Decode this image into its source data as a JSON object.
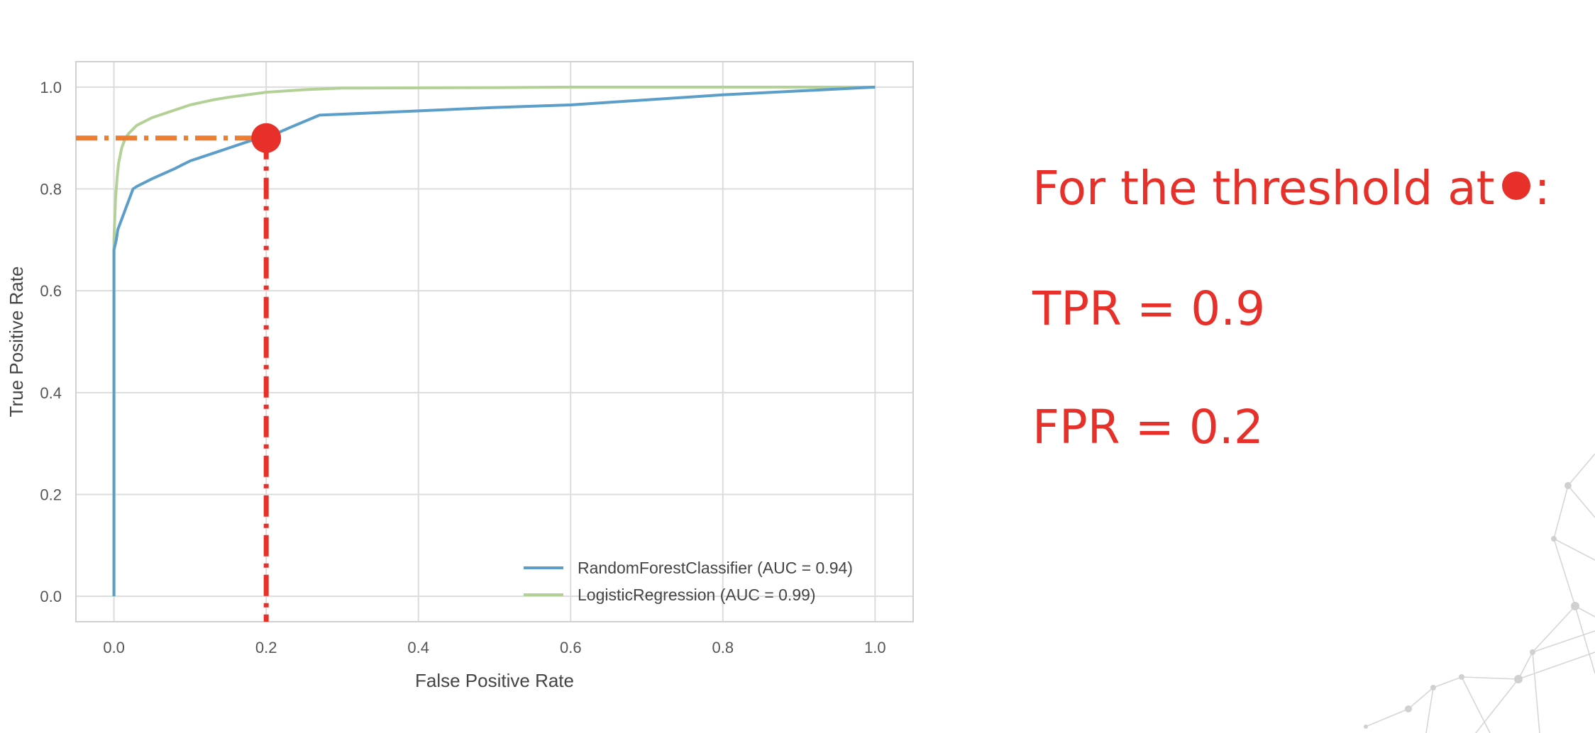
{
  "chart_data": {
    "type": "line",
    "title": "",
    "xlabel": "False Positive Rate",
    "ylabel": "True Positive Rate",
    "xlim": [
      -0.05,
      1.05
    ],
    "ylim": [
      -0.05,
      1.05
    ],
    "xticks": [
      0.0,
      0.2,
      0.4,
      0.6,
      0.8,
      1.0
    ],
    "yticks": [
      0.0,
      0.2,
      0.4,
      0.6,
      0.8,
      1.0
    ],
    "xtick_labels": [
      "0.0",
      "0.2",
      "0.4",
      "0.6",
      "0.8",
      "1.0"
    ],
    "ytick_labels": [
      "0.0",
      "0.2",
      "0.4",
      "0.6",
      "0.8",
      "1.0"
    ],
    "grid": true,
    "legend_position": "lower-right",
    "series": [
      {
        "name": "RandomForestClassifier (AUC = 0.94)",
        "color": "#5b9ec9",
        "x": [
          0.0,
          0.0,
          0.003,
          0.005,
          0.01,
          0.015,
          0.02,
          0.025,
          0.03,
          0.05,
          0.08,
          0.1,
          0.13,
          0.15,
          0.18,
          0.2,
          0.23,
          0.27,
          0.35,
          0.5,
          0.6,
          0.8,
          1.0
        ],
        "y": [
          0.0,
          0.68,
          0.7,
          0.72,
          0.74,
          0.76,
          0.78,
          0.8,
          0.805,
          0.82,
          0.84,
          0.855,
          0.87,
          0.88,
          0.895,
          0.9,
          0.92,
          0.945,
          0.95,
          0.96,
          0.965,
          0.985,
          1.0
        ]
      },
      {
        "name": "LogisticRegression (AUC = 0.99)",
        "color": "#b3d197",
        "x": [
          0.0,
          0.0,
          0.002,
          0.004,
          0.006,
          0.01,
          0.015,
          0.02,
          0.03,
          0.05,
          0.08,
          0.1,
          0.13,
          0.15,
          0.2,
          0.25,
          0.3,
          0.5,
          0.6,
          1.0
        ],
        "y": [
          0.0,
          0.7,
          0.78,
          0.82,
          0.85,
          0.88,
          0.9,
          0.91,
          0.925,
          0.94,
          0.955,
          0.965,
          0.975,
          0.98,
          0.99,
          0.995,
          0.998,
          0.999,
          1.0,
          1.0
        ]
      }
    ],
    "highlight_point": {
      "x": 0.2,
      "y": 0.9,
      "color": "#e8302a",
      "hline_color": "#ed7d31",
      "vline_color": "#e8302a"
    }
  },
  "annotation": {
    "threshold_text": "For the threshold at",
    "threshold_colon": ":",
    "tpr_text": "TPR = 0.9",
    "fpr_text": "FPR = 0.2",
    "color": "#e8302a"
  }
}
